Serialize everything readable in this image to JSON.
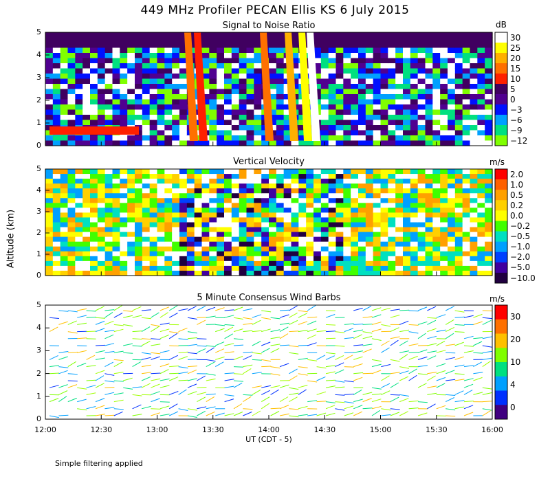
{
  "title": "449 MHz Profiler PECAN Ellis KS   6 July 2015",
  "note": "Simple filtering applied",
  "xlabel": "UT  (CDT - 5)",
  "ylabel": "Altitude (km)",
  "chart_data": [
    {
      "type": "heatmap",
      "title": "Signal to Noise Ratio",
      "ylim": [
        0,
        5
      ],
      "yticks": [
        "0",
        "1",
        "2",
        "3",
        "4",
        "5"
      ],
      "xticks": [
        "12:00",
        "12:30",
        "13:00",
        "13:30",
        "14:00",
        "14:30",
        "15:00",
        "15:30",
        "16:00"
      ],
      "colorbar_unit": "dB",
      "colorbar_labels": [
        "30",
        "25",
        "20",
        "15",
        "10",
        "5",
        "0",
        "−3",
        "−6",
        "−9",
        "−12"
      ],
      "colorbar_colors": [
        "#ffffff",
        "#ffff00",
        "#ffb000",
        "#ff7000",
        "#ff2000",
        "#400060",
        "#500090",
        "#0010ff",
        "#00a0ff",
        "#00e080",
        "#80ff00"
      ]
    },
    {
      "type": "heatmap",
      "title": "Vertical Velocity",
      "ylim": [
        0,
        5
      ],
      "yticks": [
        "0",
        "1",
        "2",
        "3",
        "4",
        "5"
      ],
      "colorbar_unit": "m/s",
      "colorbar_labels": [
        "2.0",
        "1.0",
        "0.5",
        "0.2",
        "0.0",
        "−0.2",
        "−0.5",
        "−1.0",
        "−2.0",
        "−5.0",
        "−10.0"
      ],
      "colorbar_colors": [
        "#ff0000",
        "#ff6000",
        "#ffa000",
        "#ffd000",
        "#ffff00",
        "#40ff00",
        "#00e0c0",
        "#00a0ff",
        "#0040ff",
        "#4000a0",
        "#200040"
      ]
    },
    {
      "type": "scatter",
      "title": "5 Minute Consensus Wind Barbs",
      "ylim": [
        0,
        5
      ],
      "yticks": [
        "0",
        "1",
        "2",
        "3",
        "4",
        "5"
      ],
      "colorbar_unit": "m/s",
      "colorbar_labels": [
        "30",
        "20",
        "10",
        "4",
        "0"
      ],
      "colorbar_colors": [
        "#ff0000",
        "#ff7000",
        "#ffc000",
        "#80ff00",
        "#00e080",
        "#00a0ff",
        "#0030ff",
        "#400080"
      ]
    }
  ]
}
